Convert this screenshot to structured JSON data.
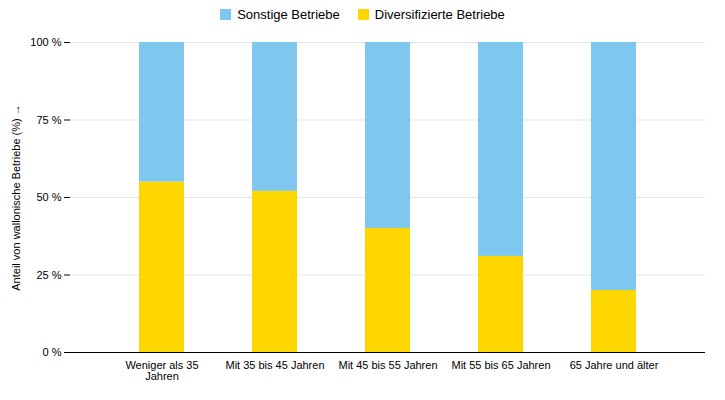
{
  "chart_data": {
    "type": "bar",
    "stacked": true,
    "categories": [
      "Weniger als 35\nJahren",
      "Mit 35 bis 45 Jahren",
      "Mit 45 bis 55 Jahren",
      "Mit 55 bis 65 Jahren",
      "65 Jahre und älter"
    ],
    "series": [
      {
        "name": "Diversifizierte Betriebe",
        "color": "#FFD700",
        "values": [
          55,
          52,
          40,
          31,
          20
        ]
      },
      {
        "name": "Sonstige Betriebe",
        "color": "#7EC8F0",
        "values": [
          45,
          48,
          60,
          69,
          80
        ]
      }
    ],
    "y_label": "Anteil von wallonische Betriebe (%)",
    "ylim": [
      0,
      100
    ],
    "yticks": [
      {
        "value": 0,
        "label": "0 %"
      },
      {
        "value": 25,
        "label": "25 %"
      },
      {
        "value": 50,
        "label": "50 %"
      },
      {
        "value": 75,
        "label": "75 %"
      },
      {
        "value": 100,
        "label": "100 %"
      }
    ],
    "grid": true,
    "legend": "top"
  }
}
